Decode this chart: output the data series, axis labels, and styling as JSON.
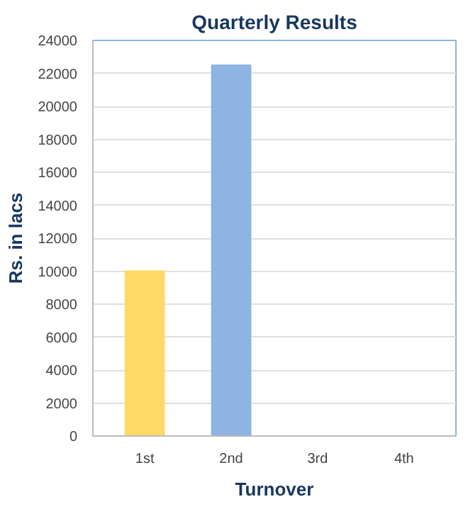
{
  "chart_data": {
    "type": "bar",
    "title": "Quarterly Results",
    "ylabel": "Rs. in lacs",
    "xlabel": "Turnover",
    "categories": [
      "1st",
      "2nd",
      "3rd",
      "4th"
    ],
    "values": [
      10000,
      22500,
      null,
      null
    ],
    "colors": [
      "#ffd966",
      "#8db4e2",
      "#8db4e2",
      "#8db4e2"
    ],
    "ylim": [
      0,
      24000
    ],
    "yticks": [
      0,
      2000,
      4000,
      6000,
      8000,
      10000,
      12000,
      14000,
      16000,
      18000,
      20000,
      22000,
      24000
    ],
    "grid": "y"
  }
}
